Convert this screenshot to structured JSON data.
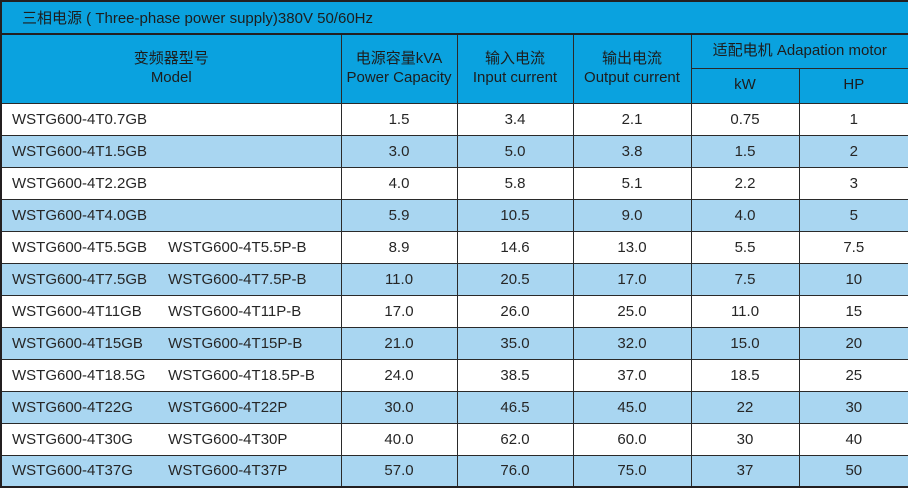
{
  "title": "三相电源 ( Three-phase power supply)380V 50/60Hz",
  "table": {
    "headers": {
      "model_zh": "变频器型号",
      "model_en": "Model",
      "power_zh": "电源容量kVA",
      "power_en": "Power Capacity",
      "input_zh": "输入电流",
      "input_en": "Input current",
      "output_zh": "输出电流",
      "output_en": "Output current",
      "motor": "适配电机  Adapation motor",
      "kw": "kW",
      "hp": "HP"
    },
    "rows": [
      {
        "model1": "WSTG600-4T0.7GB",
        "model2": "",
        "power": "1.5",
        "input": "3.4",
        "output": "2.1",
        "kw": "0.75",
        "hp": "1"
      },
      {
        "model1": "WSTG600-4T1.5GB",
        "model2": "",
        "power": "3.0",
        "input": "5.0",
        "output": "3.8",
        "kw": "1.5",
        "hp": "2"
      },
      {
        "model1": "WSTG600-4T2.2GB",
        "model2": "",
        "power": "4.0",
        "input": "5.8",
        "output": "5.1",
        "kw": "2.2",
        "hp": "3"
      },
      {
        "model1": "WSTG600-4T4.0GB",
        "model2": "",
        "power": "5.9",
        "input": "10.5",
        "output": "9.0",
        "kw": "4.0",
        "hp": "5"
      },
      {
        "model1": "WSTG600-4T5.5GB",
        "model2": "WSTG600-4T5.5P-B",
        "power": "8.9",
        "input": "14.6",
        "output": "13.0",
        "kw": "5.5",
        "hp": "7.5"
      },
      {
        "model1": "WSTG600-4T7.5GB",
        "model2": "WSTG600-4T7.5P-B",
        "power": "11.0",
        "input": "20.5",
        "output": "17.0",
        "kw": "7.5",
        "hp": "10"
      },
      {
        "model1": "WSTG600-4T11GB",
        "model2": "WSTG600-4T11P-B",
        "power": "17.0",
        "input": "26.0",
        "output": "25.0",
        "kw": "11.0",
        "hp": "15"
      },
      {
        "model1": "WSTG600-4T15GB",
        "model2": "WSTG600-4T15P-B",
        "power": "21.0",
        "input": "35.0",
        "output": "32.0",
        "kw": "15.0",
        "hp": "20"
      },
      {
        "model1": "WSTG600-4T18.5G",
        "model2": "WSTG600-4T18.5P-B",
        "power": "24.0",
        "input": "38.5",
        "output": "37.0",
        "kw": "18.5",
        "hp": "25"
      },
      {
        "model1": "WSTG600-4T22G",
        "model2": "WSTG600-4T22P",
        "power": "30.0",
        "input": "46.5",
        "output": "45.0",
        "kw": "22",
        "hp": "30"
      },
      {
        "model1": "WSTG600-4T30G",
        "model2": "WSTG600-4T30P",
        "power": "40.0",
        "input": "62.0",
        "output": "60.0",
        "kw": "30",
        "hp": "40"
      },
      {
        "model1": "WSTG600-4T37G",
        "model2": "WSTG600-4T37P",
        "power": "57.0",
        "input": "76.0",
        "output": "75.0",
        "kw": "37",
        "hp": "50"
      }
    ]
  },
  "colors": {
    "header_bg": "#0aa2df",
    "row_alt_bg": "#a9d6f1",
    "row_bg": "#ffffff",
    "border": "#231f20",
    "text": "#262626"
  }
}
